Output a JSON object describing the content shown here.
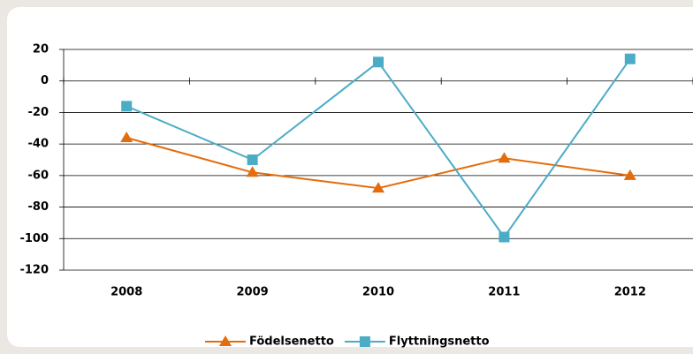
{
  "chart_data": {
    "type": "line",
    "categories": [
      "2008",
      "2009",
      "2010",
      "2011",
      "2012"
    ],
    "series": [
      {
        "name": "Födelsenetto",
        "color": "#e46c0a",
        "marker": "triangle",
        "values": [
          -36,
          -58,
          -68,
          -49,
          -60
        ]
      },
      {
        "name": "Flyttningsnetto",
        "color": "#4bacc6",
        "marker": "square",
        "values": [
          -16,
          -50,
          12,
          -99,
          14
        ]
      }
    ],
    "ylim": [
      -120,
      20
    ],
    "yticks": [
      -120,
      -100,
      -80,
      -60,
      -40,
      -20,
      0,
      20
    ],
    "grid": true,
    "legend": "bottom"
  }
}
